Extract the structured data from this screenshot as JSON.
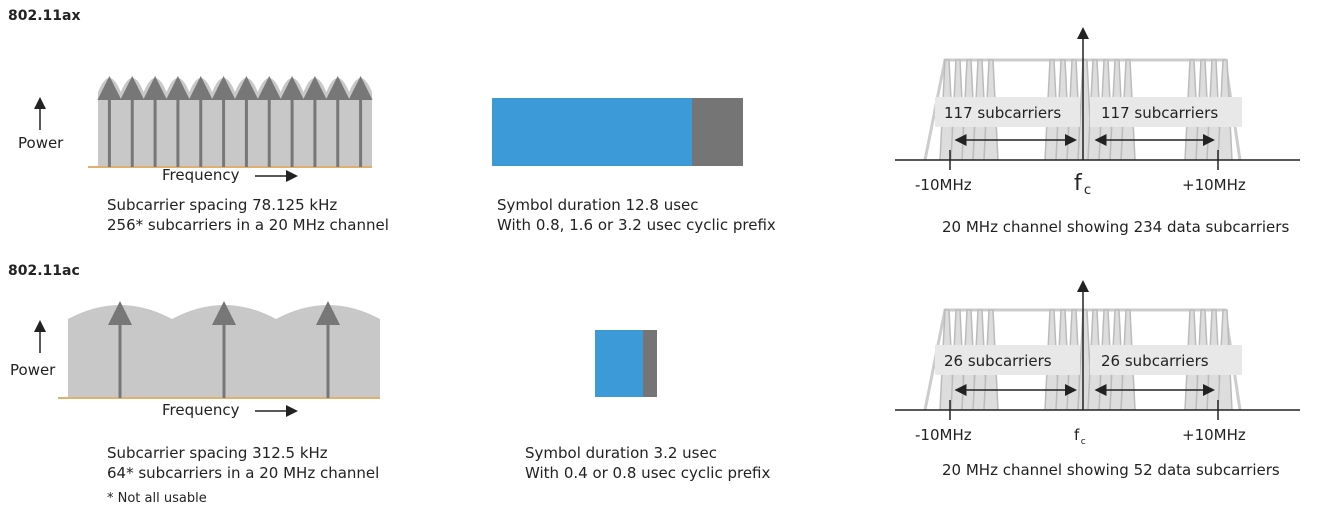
{
  "sections": [
    {
      "title": "802.11ax",
      "power": "Power",
      "frequency": "Frequency",
      "spacing": "Subcarrier spacing 78.125 kHz",
      "count": "256* subcarriers in a 20 MHz channel",
      "symbol": "Symbol duration 12.8 usec",
      "prefix": "With 0.8, 1.6 or 3.2 usec cyclic prefix",
      "left_box": "117 subcarriers",
      "right_box": "117 subcarriers",
      "low": "-10MHz",
      "fc": {
        "base": "f",
        "sub": "c"
      },
      "high": "+10MHz",
      "caption": "20 MHz channel showing 234 data subcarriers"
    },
    {
      "title": "802.11ac",
      "power": "Power",
      "frequency": "Frequency",
      "spacing": "Subcarrier spacing 312.5 kHz",
      "count": "64* subcarriers in a 20 MHz channel",
      "symbol": "Symbol duration 3.2 usec",
      "prefix": "With 0.4 or 0.8 usec cyclic prefix",
      "left_box": "26 subcarriers",
      "right_box": "26 subcarriers",
      "low": "-10MHz",
      "fc": {
        "base": "f",
        "sub": "c"
      },
      "high": "+10MHz",
      "caption": "20 MHz channel showing 52 data subcarriers"
    }
  ],
  "note": "* Not all usable"
}
